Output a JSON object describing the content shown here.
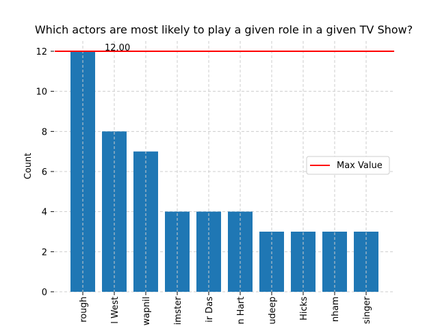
{
  "chart_data": {
    "type": "bar",
    "title": "Which actors are most likely to play a given role in a given TV Show?",
    "xlabel": "",
    "ylabel": "Count",
    "categories": [
      "rough",
      "l West",
      "wapnil",
      "imster",
      "ir Das",
      "n Hart",
      "udeep",
      "Hicks",
      "nham",
      "singer"
    ],
    "values": [
      12,
      8,
      7,
      4,
      4,
      4,
      3,
      3,
      3,
      3
    ],
    "ylim": [
      0,
      12.5
    ],
    "yticks": [
      0,
      2,
      4,
      6,
      8,
      10,
      12
    ],
    "grid": true,
    "bar_color": "#1f77b4",
    "max_line": {
      "value": 12,
      "label": "Max Value",
      "color": "#ff0000"
    },
    "max_annotation": "12.00",
    "legend_position": "center-right"
  }
}
